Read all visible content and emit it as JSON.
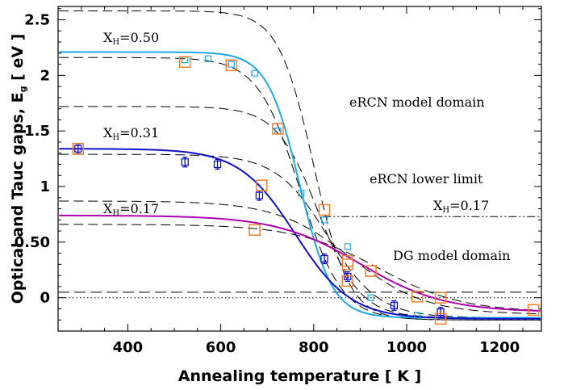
{
  "chart_data": {
    "type": "line",
    "title": "",
    "xlabel": "Annealing temperature [ K ]",
    "ylabel": "Optical and Tauc gaps, E",
    "ylabel_subscript": "g",
    "ylabel_suffix": " [ eV ]",
    "xlim": [
      250,
      1290
    ],
    "ylim": [
      -0.3,
      2.62
    ],
    "xticks": [
      400,
      600,
      800,
      1000,
      1200
    ],
    "yticks": [
      0,
      0.5,
      1,
      1.5,
      2,
      2.5
    ],
    "ytick_labels": [
      "0",
      "0.50",
      "1",
      "1.5",
      "2",
      "2.5"
    ],
    "grid": false,
    "legend": "none",
    "annotations": [
      {
        "main": "X",
        "sub": "H",
        "rest": "=0.50"
      },
      {
        "main": "X",
        "sub": "H",
        "rest": "=0.31"
      },
      {
        "main": "X",
        "sub": "H",
        "rest": "=0.17"
      },
      {
        "main": "X",
        "sub": "H",
        "rest": "=0.17"
      },
      {
        "main": "eRCN model domain"
      },
      {
        "main": "eRCN lower limit"
      },
      {
        "main": "DG model domain"
      }
    ],
    "reference_lines": [
      {
        "type": "horizontal",
        "y": 0,
        "style": "dotted"
      },
      {
        "type": "horizontal",
        "y": 0.05,
        "style": "dashed"
      },
      {
        "type": "horizontal",
        "y": 0.73,
        "style": "dash-dot-dot",
        "x_from": 820
      }
    ],
    "model_curves": [
      {
        "plateau": 2.58,
        "low": -0.2,
        "t0": 800,
        "w": 38
      },
      {
        "plateau": 2.16,
        "low": -0.2,
        "t0": 770,
        "w": 45
      },
      {
        "plateau": 1.72,
        "low": -0.18,
        "t0": 810,
        "w": 45
      },
      {
        "plateau": 1.29,
        "low": -0.18,
        "t0": 830,
        "w": 55
      },
      {
        "plateau": 0.87,
        "low": -0.15,
        "t0": 880,
        "w": 80
      },
      {
        "plateau": 0.66,
        "low": -0.13,
        "t0": 940,
        "w": 90
      }
    ],
    "series": [
      {
        "color": "#1ea8e8",
        "fit": {
          "plateau": 2.21,
          "low": -0.18,
          "t0": 770,
          "w": 35
        },
        "markers": "small-square",
        "x": [
          523,
          573,
          623,
          673,
          723,
          773,
          823,
          873,
          923,
          1023
        ],
        "y": [
          2.14,
          2.15,
          2.1,
          2.02,
          1.5,
          0.94,
          0.7,
          0.46,
          0.0,
          -0.16
        ]
      },
      {
        "color": "#1010c8",
        "fit": {
          "plateau": 1.34,
          "low": -0.19,
          "t0": 760,
          "w": 60
        },
        "markers": "errorbar-square",
        "x": [
          293,
          523,
          593,
          683,
          823,
          873,
          973,
          1073
        ],
        "y": [
          1.34,
          1.22,
          1.2,
          0.92,
          0.35,
          0.19,
          -0.07,
          -0.13
        ]
      },
      {
        "color": "#b000b0",
        "fit": {
          "plateau": 0.74,
          "low": -0.13,
          "t0": 900,
          "w": 90
        },
        "markers": "none",
        "x": [],
        "y": []
      },
      {
        "color": "#f07f2a",
        "fit": null,
        "markers": "large-square",
        "x": [
          293,
          523,
          623,
          673,
          688,
          723,
          823,
          873,
          873,
          873,
          923,
          1023,
          1073,
          1073,
          1273
        ],
        "y": [
          1.34,
          2.12,
          2.09,
          0.61,
          1.01,
          1.52,
          0.79,
          0.3,
          0.15,
          0.33,
          0.24,
          0.01,
          -0.19,
          0.0,
          -0.11
        ]
      }
    ]
  }
}
